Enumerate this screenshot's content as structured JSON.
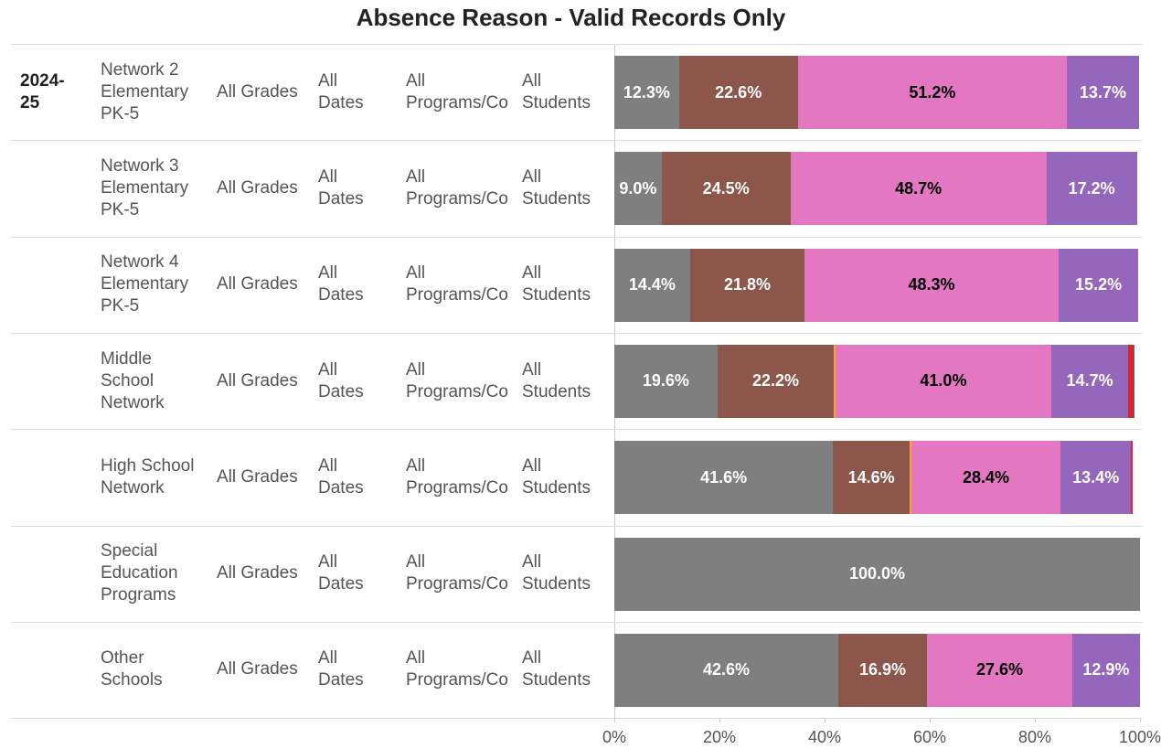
{
  "chart_data": {
    "type": "bar",
    "orientation": "horizontal",
    "stacked": true,
    "title": "Absence Reason - Valid Records Only",
    "year": "2024-25",
    "categories": [
      "Network 2 Elementary PK-5",
      "Network 3 Elementary PK-5",
      "Network 4 Elementary PK-5",
      "Middle School Network",
      "High School Network",
      "Special Education Programs",
      "Other Schools"
    ],
    "grades": [
      "All Grades",
      "All Grades",
      "All Grades",
      "All Grades",
      "All Grades",
      "All Grades",
      "All Grades"
    ],
    "dates": [
      "All Dates",
      "All Dates",
      "All Dates",
      "All Dates",
      "All Dates",
      "All Dates",
      "All Dates"
    ],
    "programs": [
      "All Programs/Co",
      "All Programs/Co",
      "All Programs/Co",
      "All Programs/Co",
      "All Programs/Co",
      "All Programs/Co",
      "All Programs/Co"
    ],
    "students": [
      "All Students",
      "All Students",
      "All Students",
      "All Students",
      "All Students",
      "All Students",
      "All Students"
    ],
    "series": [
      {
        "color": "#7f7f7f",
        "values": [
          12.3,
          9.0,
          14.4,
          19.6,
          41.6,
          100.0,
          42.6
        ],
        "value_labels": [
          "12.3%",
          "9.0%",
          "14.4%",
          "19.6%",
          "41.6%",
          "100.0%",
          "42.6%"
        ],
        "label_color": "#ffffff"
      },
      {
        "color": "#8c564b",
        "values": [
          22.6,
          24.5,
          21.8,
          22.2,
          14.6,
          null,
          16.9
        ],
        "value_labels": [
          "22.6%",
          "24.5%",
          "21.8%",
          "22.2%",
          "14.6%",
          null,
          "16.9%"
        ],
        "label_color": "#ffffff"
      },
      {
        "color": "#ff9f3a",
        "values": [
          null,
          null,
          null,
          0.3,
          0.3,
          null,
          null
        ]
      },
      {
        "color": "#e377c2",
        "values": [
          51.2,
          48.7,
          48.3,
          41.0,
          28.4,
          null,
          27.6
        ],
        "value_labels": [
          "51.2%",
          "48.7%",
          "48.3%",
          "41.0%",
          "28.4%",
          null,
          "27.6%"
        ],
        "label_color": "#000000"
      },
      {
        "color": "#9467bd",
        "values": [
          13.7,
          17.2,
          15.2,
          14.7,
          13.4,
          null,
          12.9
        ],
        "value_labels": [
          "13.7%",
          "17.2%",
          "15.2%",
          "14.7%",
          "13.4%",
          null,
          "12.9%"
        ],
        "label_color": "#ffffff"
      },
      {
        "color": "#d62728",
        "values": [
          null,
          null,
          null,
          0.9,
          0.3,
          null,
          null
        ]
      },
      {
        "color": "#1f77b4",
        "values": [
          null,
          null,
          null,
          0.2,
          null,
          null,
          null
        ]
      }
    ],
    "xlim": [
      0,
      100
    ],
    "xticks": [
      {
        "value": 0,
        "label": "0%"
      },
      {
        "value": 20,
        "label": "20%"
      },
      {
        "value": 40,
        "label": "40%"
      },
      {
        "value": 60,
        "label": "60%"
      },
      {
        "value": 80,
        "label": "80%"
      },
      {
        "value": 100,
        "label": "100%"
      }
    ]
  }
}
